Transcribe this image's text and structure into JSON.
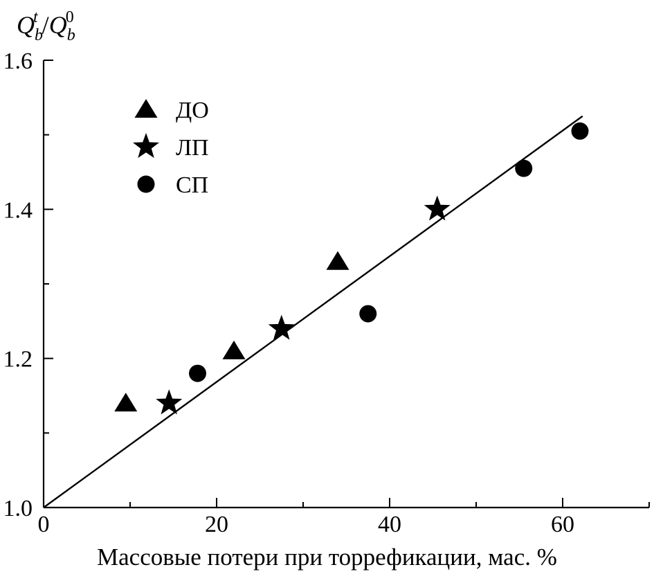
{
  "chart_data": {
    "type": "scatter",
    "ylabel": {
      "main": "Q",
      "sub1": "b",
      "sup1": "t",
      "slash": "/",
      "main2": "Q",
      "sub2": "b",
      "sup2": "0"
    },
    "xlabel": "Массовые потери при торрефикации, мас. %",
    "xlim": [
      0,
      70
    ],
    "ylim": [
      1.0,
      1.6
    ],
    "x_ticks": [
      {
        "value": 0,
        "label": "0"
      },
      {
        "value": 20,
        "label": "20"
      },
      {
        "value": 40,
        "label": "40"
      },
      {
        "value": 60,
        "label": "60"
      }
    ],
    "x_minor_ticks": [
      10,
      30,
      50,
      70
    ],
    "y_ticks": [
      {
        "value": 1.0,
        "label": "1.0"
      },
      {
        "value": 1.2,
        "label": "1.2"
      },
      {
        "value": 1.4,
        "label": "1.4"
      },
      {
        "value": 1.6,
        "label": "1.6"
      }
    ],
    "y_minor_ticks": [
      1.1,
      1.3,
      1.5
    ],
    "grid": false,
    "legend_position": "top-left",
    "series": [
      {
        "name": "ДО",
        "marker": "triangle",
        "points": [
          {
            "x": 9.5,
            "y": 1.14
          },
          {
            "x": 22,
            "y": 1.21
          },
          {
            "x": 34,
            "y": 1.33
          }
        ]
      },
      {
        "name": "ЛП",
        "marker": "star",
        "points": [
          {
            "x": 14.5,
            "y": 1.14
          },
          {
            "x": 27.5,
            "y": 1.24
          },
          {
            "x": 45.5,
            "y": 1.4
          }
        ]
      },
      {
        "name": "СП",
        "marker": "circle",
        "points": [
          {
            "x": 17.8,
            "y": 1.18
          },
          {
            "x": 37.5,
            "y": 1.26
          },
          {
            "x": 55.5,
            "y": 1.455
          },
          {
            "x": 62,
            "y": 1.505
          }
        ]
      }
    ],
    "fit_line": {
      "x": [
        0,
        62.3
      ],
      "y": [
        1.0,
        1.525
      ]
    },
    "colors": {
      "ink": "#000000",
      "background": "#ffffff"
    }
  }
}
